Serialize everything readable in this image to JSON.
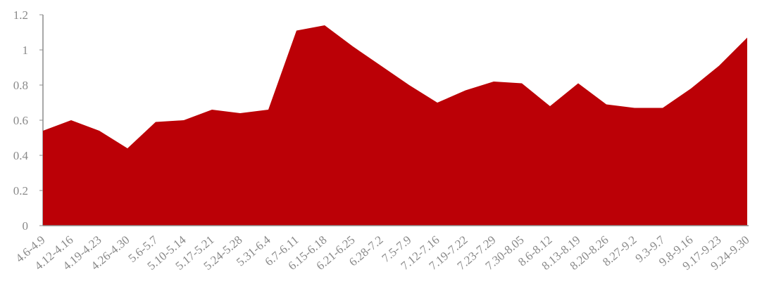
{
  "chart_data": {
    "type": "area",
    "title": "",
    "xlabel": "",
    "ylabel": "",
    "ylim": [
      0,
      1.2
    ],
    "yticks": [
      "0",
      "0.2",
      "0.4",
      "0.6",
      "0.8",
      "1",
      "1.2"
    ],
    "grid": false,
    "legend": "none",
    "color": "#bb0006",
    "categories": [
      "4.6-4.9",
      "4.12-4.16",
      "4.19-4.23",
      "4.26-4.30",
      "5.6-5.7",
      "5.10-5.14",
      "5.17-5.21",
      "5.24-5.28",
      "5.31-6.4",
      "6.7-6.11",
      "6.15-6.18",
      "6.21-6.25",
      "6.28-7.2",
      "7.5-7.9",
      "7.12-7.16",
      "7.19-7.22",
      "7.23-7.29",
      "7.30-8.05",
      "8.6-8.12",
      "8.13-8.19",
      "8.20-8.26",
      "8.27-9.2",
      "9.3-9.7",
      "9.8-9.16",
      "9.17-9.23",
      "9.24-9.30"
    ],
    "series": [
      {
        "values": [
          0.54,
          0.6,
          0.54,
          0.44,
          0.59,
          0.6,
          0.66,
          0.64,
          0.66,
          1.11,
          1.14,
          1.02,
          0.91,
          0.8,
          0.7,
          0.77,
          0.82,
          0.81,
          0.68,
          0.81,
          0.69,
          0.67,
          0.67,
          0.78,
          0.91,
          1.07
        ]
      }
    ]
  }
}
